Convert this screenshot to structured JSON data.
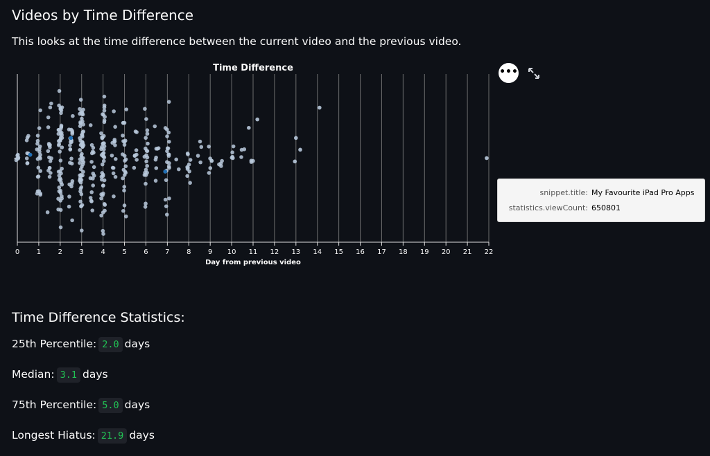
{
  "header": {
    "title": "Videos by Time Difference",
    "description": "This looks at the time difference between the current video and the previous video."
  },
  "chart_controls": {
    "menu_label": "•••",
    "expand_icon": "expand-icon"
  },
  "tooltip": {
    "rows": [
      {
        "key": "snippet.title:",
        "value": "My Favourite iPad Pro Apps"
      },
      {
        "key": "statistics.viewCount:",
        "value": "650801"
      }
    ]
  },
  "stats": {
    "title": "Time Difference Statistics:",
    "items": [
      {
        "label": "25th Percentile:",
        "value": "2.0",
        "unit": "days"
      },
      {
        "label": "Median:",
        "value": "3.1",
        "unit": "days"
      },
      {
        "label": "75th Percentile:",
        "value": "5.0",
        "unit": "days"
      },
      {
        "label": "Longest Hiatus:",
        "value": "21.9",
        "unit": "days"
      }
    ]
  },
  "colors": {
    "point": "#b8c9dc",
    "highlight": "#1f6fb5",
    "grid": "#8c8c8c",
    "axis": "#e0e0e0",
    "code": "#21c354"
  },
  "chart_data": {
    "type": "scatter",
    "title": "Time Difference",
    "xlabel": "Day from previous video",
    "ylabel": "",
    "xlim": [
      0,
      22
    ],
    "ylim": [
      0,
      1
    ],
    "x_ticks": [
      0,
      1,
      2,
      3,
      4,
      5,
      6,
      7,
      8,
      9,
      10,
      11,
      12,
      13,
      14,
      15,
      16,
      17,
      18,
      19,
      20,
      21,
      22
    ],
    "jitter_columns": [
      {
        "x": 0.0,
        "count": 6,
        "spread": 0.12
      },
      {
        "x": 0.5,
        "count": 8,
        "spread": 0.5
      },
      {
        "x": 1.0,
        "count": 22,
        "spread": 0.7
      },
      {
        "x": 1.5,
        "count": 18,
        "spread": 0.75
      },
      {
        "x": 2.0,
        "count": 50,
        "spread": 0.9
      },
      {
        "x": 2.5,
        "count": 24,
        "spread": 0.8
      },
      {
        "x": 3.0,
        "count": 62,
        "spread": 1.0
      },
      {
        "x": 3.5,
        "count": 18,
        "spread": 0.8
      },
      {
        "x": 4.0,
        "count": 48,
        "spread": 1.0
      },
      {
        "x": 4.5,
        "count": 14,
        "spread": 0.7
      },
      {
        "x": 5.0,
        "count": 24,
        "spread": 1.0
      },
      {
        "x": 5.5,
        "count": 8,
        "spread": 0.5
      },
      {
        "x": 6.0,
        "count": 22,
        "spread": 0.85
      },
      {
        "x": 6.5,
        "count": 8,
        "spread": 0.6
      },
      {
        "x": 7.0,
        "count": 22,
        "spread": 0.8
      },
      {
        "x": 7.5,
        "count": 2,
        "spread": 0.3
      },
      {
        "x": 8.0,
        "count": 10,
        "spread": 0.6
      },
      {
        "x": 8.5,
        "count": 4,
        "spread": 0.4
      },
      {
        "x": 9.0,
        "count": 6,
        "spread": 0.3
      },
      {
        "x": 9.5,
        "count": 4,
        "spread": 0.2
      },
      {
        "x": 10.0,
        "count": 5,
        "spread": 0.4
      },
      {
        "x": 10.5,
        "count": 3,
        "spread": 0.35
      },
      {
        "x": 11.0,
        "count": 3,
        "spread": 0.25
      }
    ],
    "points": [
      {
        "x": 13.0,
        "y": 0.62
      },
      {
        "x": 12.95,
        "y": 0.48
      },
      {
        "x": 13.2,
        "y": 0.55
      },
      {
        "x": 14.1,
        "y": 0.8
      },
      {
        "x": 11.2,
        "y": 0.73
      },
      {
        "x": 10.8,
        "y": 0.68
      },
      {
        "x": 21.9,
        "y": 0.5
      },
      {
        "x": 0.6,
        "y": 0.52
      },
      {
        "x": 2.5,
        "y": 0.62
      },
      {
        "x": 6.9,
        "y": 0.42
      }
    ],
    "highlighted_points": [
      {
        "x": 0.6,
        "y": 0.52
      },
      {
        "x": 2.5,
        "y": 0.62
      },
      {
        "x": 6.9,
        "y": 0.42
      }
    ],
    "hovered_point": {
      "x": 21.9,
      "y": 0.5
    }
  }
}
